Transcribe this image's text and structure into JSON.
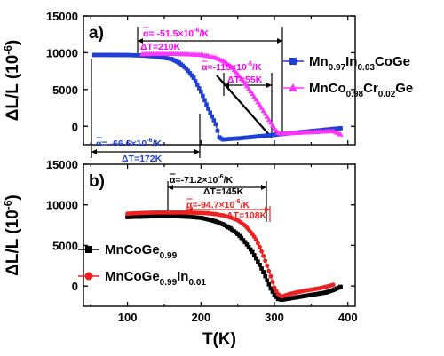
{
  "chart_data": [
    {
      "panel_label": "a)",
      "type": "line",
      "ylabel": "ΔL/L (10-6)",
      "ylabel_parts": [
        "ΔL/L (10",
        "-6",
        ")"
      ],
      "ylim": [
        -2500,
        15000
      ],
      "yticks": [
        15000,
        10000,
        5000,
        0
      ],
      "ytick_labels": [
        "15000",
        "10000",
        "5000",
        "0"
      ],
      "grid": false,
      "legend_position": "right",
      "series": [
        {
          "name": "Mn0.97In0.03CoGe",
          "name_parts": [
            [
              "Mn",
              ""
            ],
            [
              "0.97",
              "sub"
            ],
            [
              "In",
              ""
            ],
            [
              "0.03",
              "sub"
            ],
            [
              "CoGe",
              ""
            ]
          ],
          "color": "#1f3fd6",
          "marker": "square",
          "x": [
            55,
            80,
            100,
            120,
            140,
            160,
            170,
            180,
            190,
            200,
            210,
            220,
            225,
            230,
            240,
            250,
            260,
            270,
            280,
            290,
            300,
            310,
            320,
            330,
            340,
            350,
            360,
            370,
            380,
            390
          ],
          "y": [
            9700,
            9700,
            9680,
            9620,
            9480,
            9150,
            8650,
            7850,
            6600,
            4700,
            2400,
            300,
            -1500,
            -1800,
            -1700,
            -1650,
            -1550,
            -1450,
            -1350,
            -1250,
            -1150,
            -1050,
            -950,
            -850,
            -750,
            -650,
            -550,
            -450,
            -350,
            -250
          ]
        },
        {
          "name": "MnCo0.98Cr0.02Ge",
          "name_parts": [
            [
              "MnCo",
              ""
            ],
            [
              "0.98",
              "sub"
            ],
            [
              "Cr",
              ""
            ],
            [
              "0.02",
              "sub"
            ],
            [
              "Ge",
              ""
            ]
          ],
          "color": "#ff33ff",
          "marker": "triangle",
          "x": [
            120,
            140,
            160,
            180,
            200,
            210,
            220,
            230,
            240,
            250,
            260,
            270,
            280,
            290,
            300,
            305,
            310,
            320,
            330,
            340,
            350,
            360,
            370,
            380,
            390
          ],
          "y": [
            9800,
            9850,
            9850,
            9800,
            9700,
            9550,
            9300,
            8900,
            8200,
            7100,
            5800,
            4400,
            2900,
            1300,
            -300,
            -900,
            -1000,
            -950,
            -900,
            -850,
            -800,
            -750,
            -700,
            -650,
            -1100
          ]
        }
      ],
      "annotations": [
        {
          "text": "α= -51.5×10-6/K",
          "parts": [
            "α= -51.5×10",
            "-6",
            "/K"
          ],
          "color": "#ff00ff"
        },
        {
          "text": "ΔT=210K",
          "parts": [
            "ΔT=210K"
          ],
          "color": "#ff00ff"
        },
        {
          "text": "α=-119×10-6/K",
          "parts": [
            "α=-119×10",
            "-6",
            "/K"
          ],
          "color": "#ff00ff"
        },
        {
          "text": "ΔT=55K",
          "parts": [
            "ΔT=55K"
          ],
          "color": "#ff00ff"
        },
        {
          "text": "α= -66.6×10-6/K",
          "parts": [
            "α= -66.6×10",
            "-6",
            "/K"
          ],
          "color": "#1f3fd6"
        },
        {
          "text": "ΔT=172K",
          "parts": [
            "ΔT=172K"
          ],
          "color": "#1f3fd6"
        }
      ]
    },
    {
      "panel_label": "b)",
      "type": "line",
      "xlabel": "T(K)",
      "ylabel": "ΔL/L (10-6)",
      "ylabel_parts": [
        "ΔL/L (10",
        "-6",
        ")"
      ],
      "xlim": [
        40,
        410
      ],
      "ylim": [
        -2500,
        15000
      ],
      "xticks": [
        100,
        200,
        300,
        400
      ],
      "xtick_labels": [
        "100",
        "200",
        "300",
        "400"
      ],
      "yticks": [
        15000,
        10000,
        5000,
        0
      ],
      "ytick_labels": [
        "15000",
        "10000",
        "5000",
        "0"
      ],
      "grid": false,
      "legend_position": "bottom-left",
      "series": [
        {
          "name": "MnCoGe0.99",
          "name_parts": [
            [
              "MnCoGe",
              ""
            ],
            [
              "0.99",
              "sub"
            ]
          ],
          "color": "#000000",
          "marker": "square",
          "x": [
            100,
            120,
            140,
            160,
            180,
            200,
            210,
            220,
            230,
            240,
            250,
            260,
            270,
            275,
            280,
            285,
            290,
            295,
            300,
            305,
            310,
            320,
            330,
            340,
            350,
            360,
            370,
            380,
            390
          ],
          "y": [
            8500,
            8550,
            8600,
            8600,
            8550,
            8400,
            8200,
            7950,
            7600,
            7100,
            6400,
            5400,
            4200,
            3400,
            2600,
            1700,
            700,
            -300,
            -1100,
            -1600,
            -1700,
            -1550,
            -1400,
            -1250,
            -1100,
            -950,
            -800,
            -500,
            -100
          ]
        },
        {
          "name": "MnCoGe0.99In0.01",
          "name_parts": [
            [
              "MnCoGe",
              ""
            ],
            [
              "0.99",
              "sub"
            ],
            [
              "In",
              ""
            ],
            [
              "0.01",
              "sub"
            ]
          ],
          "color": "#ee2020",
          "marker": "circle",
          "x": [
            100,
            120,
            140,
            160,
            180,
            200,
            210,
            220,
            230,
            240,
            250,
            260,
            270,
            275,
            280,
            285,
            290,
            295,
            300,
            305,
            310,
            320,
            330,
            340,
            350,
            360,
            370,
            380
          ],
          "y": [
            8900,
            9000,
            9050,
            9050,
            9050,
            9000,
            8950,
            8850,
            8700,
            8450,
            8100,
            7450,
            6400,
            5700,
            4800,
            3700,
            2500,
            1200,
            -200,
            -1000,
            -1300,
            -1000,
            -800,
            -600,
            -450,
            -300,
            -100,
            150
          ]
        }
      ],
      "annotations": [
        {
          "text": "α=-71.2×10-6/K",
          "parts": [
            "α=-71.2×10",
            "-6",
            "/K"
          ],
          "color": "#000000"
        },
        {
          "text": "ΔT=145K",
          "parts": [
            "ΔT=145K"
          ],
          "color": "#000000"
        },
        {
          "text": "α=-94.7×10-6/K",
          "parts": [
            "α=-94.7×10",
            "-6",
            "/K"
          ],
          "color": "#ee2020"
        },
        {
          "text": "ΔT=108K",
          "parts": [
            "ΔT=108K"
          ],
          "color": "#ee2020"
        }
      ]
    }
  ]
}
